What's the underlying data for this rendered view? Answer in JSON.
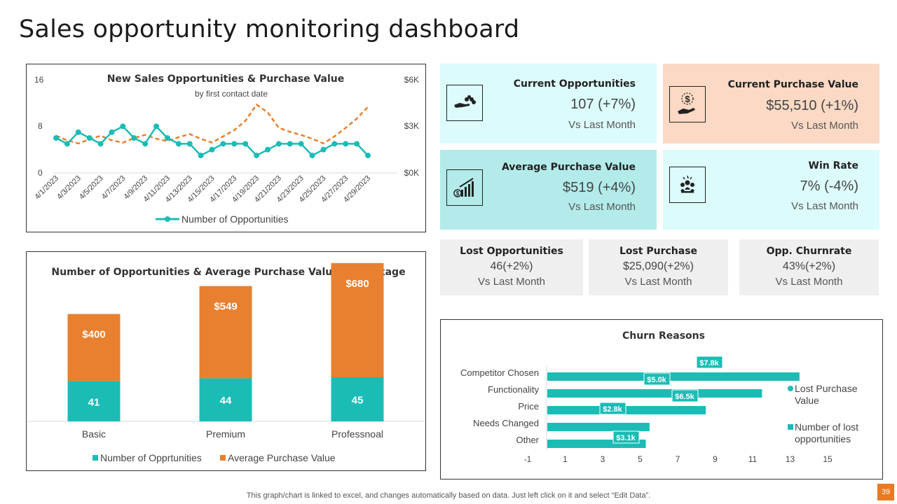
{
  "page": {
    "title": "Sales opportunity monitoring dashboard",
    "footer": "This graph/chart is linked to excel,  and changes automatically based on data. Just left click on it and select “Edit Data”.",
    "page_number": "39"
  },
  "colors": {
    "teal": "#1bbcb5",
    "orange": "#e8802f",
    "cyan_light": "#dcfbfb",
    "peach": "#fbd9c4",
    "teal_light": "#b2ebea",
    "grey": "#efefef"
  },
  "kpis": {
    "current_opportunities": {
      "label": "Current Opportunities",
      "value": "107 (+7%)",
      "sub": "Vs Last Month",
      "icon": "hand-coins-icon"
    },
    "current_purchase_value": {
      "label": "Current Purchase Value",
      "value": "$55,510 (+1%)",
      "sub": "Vs Last Month",
      "icon": "hand-dollar-icon"
    },
    "average_purchase_value": {
      "label": "Average Purchase Value",
      "value": "$519 (+4%)",
      "sub": "Vs Last Month",
      "icon": "growth-chart-icon"
    },
    "win_rate": {
      "label": "Win Rate",
      "value": "7% (-4%)",
      "sub": "Vs Last Month",
      "icon": "trophy-team-icon"
    },
    "lost_opportunities": {
      "label": "Lost Opportunities",
      "value": "46(+2%)",
      "sub": "Vs Last Month"
    },
    "lost_purchase": {
      "label": "Lost Purchase",
      "value": "$25,090(+2%)",
      "sub": "Vs Last Month"
    },
    "opp_churnrate": {
      "label": "Opp. Churnrate",
      "value": "43%(+2%)",
      "sub": "Vs Last Month"
    }
  },
  "chart_data": [
    {
      "type": "line",
      "title": "New Sales Opportunities & Purchase Value",
      "subtitle": "by first contact date",
      "x": [
        "4/1/2023",
        "4/2/2023",
        "4/3/2023",
        "4/4/2023",
        "4/5/2023",
        "4/6/2023",
        "4/7/2023",
        "4/8/2023",
        "4/9/2023",
        "4/10/2023",
        "4/11/2023",
        "4/12/2023",
        "4/13/2023",
        "4/14/2023",
        "4/15/2023",
        "4/16/2023",
        "4/17/2023",
        "4/18/2023",
        "4/19/2023",
        "4/20/2023",
        "4/21/2023",
        "4/22/2023",
        "4/23/2023",
        "4/24/2023",
        "4/25/2023",
        "4/26/2023",
        "4/27/2023",
        "4/28/2023",
        "4/29/2023",
        "4/30/2023"
      ],
      "x_tick_labels": [
        "4/1/2023",
        "4/3/2023",
        "4/5/2023",
        "4/7/2023",
        "4/9/2023",
        "4/11/2023",
        "4/13/2023",
        "4/15/2023",
        "4/17/2023",
        "4/19/2023",
        "4/21/2023",
        "4/23/2023",
        "4/25/2023",
        "4/27/2023",
        "4/29/2023"
      ],
      "y_left_ticks": [
        "0",
        "8",
        "16"
      ],
      "y_right_ticks": [
        "$0K",
        "$3K",
        "$6K"
      ],
      "ylim_left": [
        0,
        16
      ],
      "ylim_right": [
        0,
        6000
      ],
      "legend": "Number of Opportunities",
      "legend_position": "bottom",
      "series": [
        {
          "name": "Number of Opportunities",
          "axis": "left",
          "values": [
            6,
            5,
            7,
            6,
            5,
            7,
            8,
            6,
            5,
            8,
            6,
            5,
            5,
            3,
            4,
            5,
            5,
            5,
            3,
            4,
            5,
            5,
            5,
            3,
            4,
            5,
            5,
            5,
            3,
            null
          ]
        },
        {
          "name": "Purchase Value",
          "axis": "right",
          "values": [
            2400,
            2100,
            1900,
            2150,
            2400,
            2100,
            1950,
            2250,
            2450,
            2200,
            2050,
            2300,
            2500,
            2200,
            1950,
            2350,
            2750,
            3350,
            4400,
            3900,
            2900,
            2650,
            2450,
            2200,
            1900,
            2350,
            2900,
            3500,
            4250,
            null
          ]
        }
      ]
    },
    {
      "type": "bar",
      "stacked": true,
      "title": "Number of Opportunities & Average Purchase Value by Package",
      "categories": [
        "Basic",
        "Premium",
        "Professnoal"
      ],
      "series": [
        {
          "name": "Number of Opprtunities",
          "values": [
            41,
            44,
            45
          ],
          "labels": [
            "41",
            "44",
            "45"
          ]
        },
        {
          "name": "Average Purchase Value",
          "values": [
            400,
            549,
            680
          ],
          "labels": [
            "$400",
            "$549",
            "$680"
          ]
        }
      ],
      "legend_position": "bottom"
    },
    {
      "type": "bar",
      "orientation": "horizontal",
      "title": "Churn Reasons",
      "categories": [
        "Competitor Chosen",
        "Functionality",
        "Price",
        "Needs Changed",
        "Other"
      ],
      "series": [
        {
          "name": "Lost Purchase Value",
          "labels": [
            "$7.8k",
            "$5.0k",
            "$6.5k",
            "$2.8k",
            "$3.1k"
          ]
        },
        {
          "name": "Number of lost opportunities",
          "values": [
            13.5,
            11.5,
            8.5,
            5.5,
            5.3
          ]
        }
      ],
      "x_ticks": [
        "-1",
        "1",
        "3",
        "5",
        "7",
        "9",
        "11",
        "13",
        "15"
      ],
      "xlim": [
        -1,
        15
      ],
      "legend_position": "right"
    }
  ]
}
